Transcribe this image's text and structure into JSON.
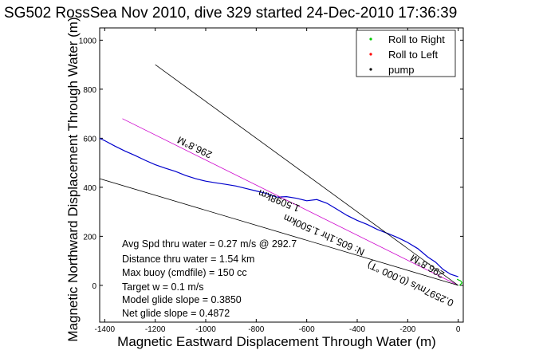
{
  "chart_data": {
    "type": "line",
    "title": "SG502 RossSea Nov 2010, dive 329 started 24-Dec-2010 17:36:39",
    "xlabel": "Magnetic Eastward Displacement Through Water (m)",
    "ylabel": "Magnetic Northward Displacement Through Water (m)",
    "xlim": [
      -1420,
      20
    ],
    "ylim": [
      -150,
      1050
    ],
    "xticks": [
      -1400,
      -1200,
      -1000,
      -800,
      -600,
      -400,
      -200,
      0
    ],
    "yticks": [
      0,
      200,
      400,
      600,
      800,
      1000
    ],
    "grid": false,
    "legend": {
      "position": "top-right",
      "entries": [
        {
          "label": "Roll to Right",
          "color": "#00cc00",
          "marker": "dot"
        },
        {
          "label": "Roll to Left",
          "color": "#ff0000",
          "marker": "dot"
        },
        {
          "label": "pump",
          "color": "#000000",
          "marker": "dot"
        }
      ]
    },
    "series": [
      {
        "color": "#0000cc",
        "x": [
          0,
          -30,
          -60,
          -90,
          -120,
          -160,
          -200,
          -240,
          -280,
          -320,
          -360,
          -400,
          -440,
          -480,
          -520,
          -560,
          -600,
          -640,
          -680,
          -720,
          -760,
          -800,
          -840,
          -880,
          -920,
          -960,
          -1000,
          -1040,
          -1080,
          -1120,
          -1160,
          -1200,
          -1240,
          -1280,
          -1320,
          -1360,
          -1400,
          -1420
        ],
        "y": [
          35,
          45,
          65,
          95,
          115,
          150,
          175,
          195,
          212,
          228,
          248,
          265,
          285,
          310,
          335,
          350,
          345,
          355,
          362,
          360,
          375,
          385,
          395,
          405,
          412,
          418,
          425,
          435,
          448,
          465,
          478,
          492,
          510,
          530,
          548,
          568,
          590,
          600
        ]
      },
      {
        "color": "#cc00cc",
        "x": [
          0,
          -1330
        ],
        "y": [
          0,
          680
        ]
      },
      {
        "color": "#000000",
        "x": [
          0,
          -1200
        ],
        "y": [
          0,
          900
        ]
      },
      {
        "color": "#000000",
        "x": [
          0,
          -1420
        ],
        "y": [
          0,
          435
        ]
      }
    ],
    "line_labels": [
      {
        "text": "296.8°M"
      },
      {
        "text": "296.8°M"
      },
      {
        "text": "1.5098km"
      },
      {
        "text": "N: 605.1hr 1.500km"
      },
      {
        "text": "0.2597m/s (0.000 °T)"
      }
    ],
    "annotations": [
      "Avg Spd thru water =  0.27 m/s @ 292.7",
      "Distance thru water =  1.54 km",
      "Max buoy (cmdfile) = 150 cc",
      "Target w = 0.1 m/s",
      "Model glide slope = 0.3850",
      "Net glide slope = 0.4872"
    ]
  }
}
